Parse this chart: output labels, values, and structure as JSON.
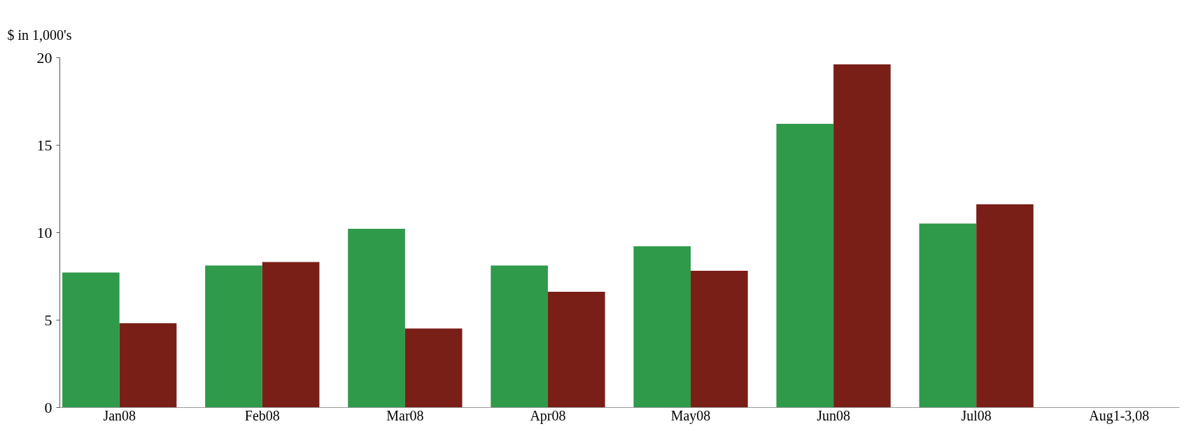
{
  "chart_data": {
    "type": "bar",
    "ylabel": "$ in 1,000's",
    "categories": [
      "Jan08",
      "Feb08",
      "Mar08",
      "Apr08",
      "May08",
      "Jun08",
      "Jul08",
      "Aug1-3,08"
    ],
    "series": [
      {
        "color": "#2e9a4a",
        "values": [
          7.7,
          8.1,
          10.2,
          8.1,
          9.2,
          16.2,
          10.5,
          0
        ]
      },
      {
        "color": "#7a1e18",
        "values": [
          4.8,
          8.3,
          4.5,
          6.6,
          7.8,
          19.6,
          11.6,
          0
        ]
      }
    ],
    "ylim": [
      0,
      20
    ],
    "yticks": [
      0,
      5,
      10,
      15,
      20
    ],
    "grid": false,
    "legend": false
  }
}
